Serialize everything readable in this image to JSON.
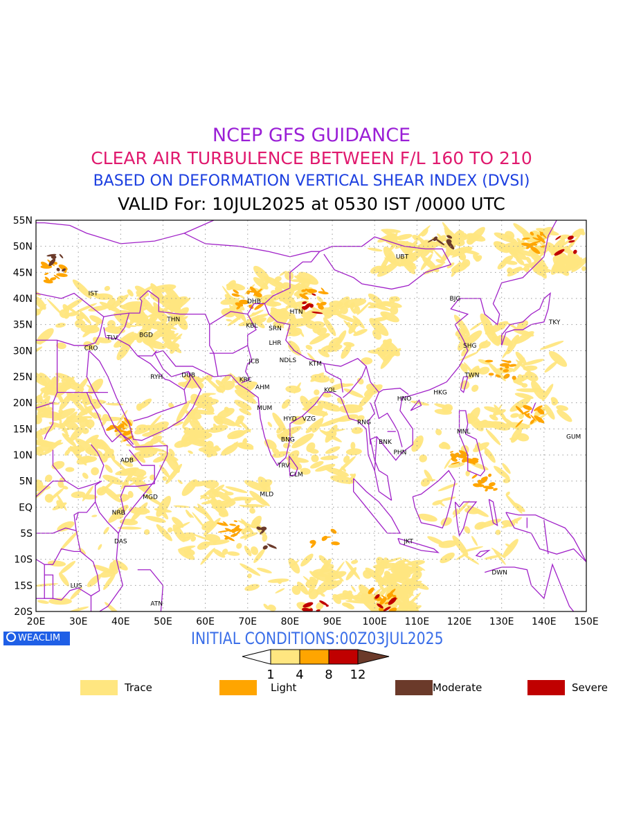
{
  "titles": {
    "line1": "NCEP GFS GUIDANCE",
    "line2": "CLEAR AIR TURBULENCE BETWEEN F/L 160 TO 210",
    "line3": "BASED ON DEFORMATION VERTICAL SHEAR INDEX (DVSI)",
    "line4": "VALID For: 10JUL2025 at 0530 IST /0000 UTC"
  },
  "axes": {
    "lat_labels": [
      "55N",
      "50N",
      "45N",
      "40N",
      "35N",
      "30N",
      "25N",
      "20N",
      "15N",
      "10N",
      "5N",
      "EQ",
      "5S",
      "10S",
      "15S",
      "20S"
    ],
    "lon_labels": [
      "20E",
      "30E",
      "40E",
      "50E",
      "60E",
      "70E",
      "80E",
      "90E",
      "100E",
      "110E",
      "120E",
      "130E",
      "140E",
      "150E"
    ],
    "lon_range": [
      20,
      150
    ],
    "lat_range": [
      -20,
      55
    ],
    "grid": true
  },
  "stations": [
    {
      "code": "IST",
      "lon": 33.5,
      "lat": 41.0
    },
    {
      "code": "TLV",
      "lon": 38.0,
      "lat": 32.5
    },
    {
      "code": "CRO",
      "lon": 33.0,
      "lat": 30.5
    },
    {
      "code": "THN",
      "lon": 52.5,
      "lat": 36.0
    },
    {
      "code": "BGD",
      "lon": 46.0,
      "lat": 33.0
    },
    {
      "code": "RYH",
      "lon": 48.5,
      "lat": 25.0
    },
    {
      "code": "DUB",
      "lon": 56.0,
      "lat": 25.3
    },
    {
      "code": "ADB",
      "lon": 41.5,
      "lat": 9.0
    },
    {
      "code": "MGD",
      "lon": 47.0,
      "lat": 2.0
    },
    {
      "code": "NRB",
      "lon": 39.5,
      "lat": -1.0
    },
    {
      "code": "DAS",
      "lon": 40.0,
      "lat": -6.5
    },
    {
      "code": "LUS",
      "lon": 29.5,
      "lat": -15.0
    },
    {
      "code": "ATN",
      "lon": 48.5,
      "lat": -18.5
    },
    {
      "code": "DHB",
      "lon": 71.5,
      "lat": 39.5
    },
    {
      "code": "KBL",
      "lon": 71.0,
      "lat": 34.8
    },
    {
      "code": "SRN",
      "lon": 76.5,
      "lat": 34.3
    },
    {
      "code": "HTN",
      "lon": 81.5,
      "lat": 37.5
    },
    {
      "code": "LHR",
      "lon": 76.5,
      "lat": 31.5
    },
    {
      "code": "JCB",
      "lon": 71.5,
      "lat": 28.0
    },
    {
      "code": "NDLS",
      "lon": 79.5,
      "lat": 28.2
    },
    {
      "code": "KRC",
      "lon": 69.5,
      "lat": 24.5
    },
    {
      "code": "AHM",
      "lon": 73.5,
      "lat": 23.0
    },
    {
      "code": "KTM",
      "lon": 86.0,
      "lat": 27.5
    },
    {
      "code": "KOL",
      "lon": 89.5,
      "lat": 22.5
    },
    {
      "code": "MUM",
      "lon": 74.0,
      "lat": 19.0
    },
    {
      "code": "HYD",
      "lon": 80.0,
      "lat": 17.0
    },
    {
      "code": "VZG",
      "lon": 84.5,
      "lat": 17.0
    },
    {
      "code": "BNG",
      "lon": 79.5,
      "lat": 13.0
    },
    {
      "code": "TRV",
      "lon": 78.5,
      "lat": 8.0
    },
    {
      "code": "CLM",
      "lon": 81.5,
      "lat": 6.3
    },
    {
      "code": "MLD",
      "lon": 74.5,
      "lat": 2.5
    },
    {
      "code": "RNG",
      "lon": 97.5,
      "lat": 16.3
    },
    {
      "code": "BNK",
      "lon": 102.5,
      "lat": 12.5
    },
    {
      "code": "PHN",
      "lon": 106.0,
      "lat": 10.5
    },
    {
      "code": "HNO",
      "lon": 107.0,
      "lat": 20.8
    },
    {
      "code": "HKG",
      "lon": 115.5,
      "lat": 22.0
    },
    {
      "code": "TWN",
      "lon": 123.0,
      "lat": 25.3
    },
    {
      "code": "SHG",
      "lon": 122.5,
      "lat": 31.0
    },
    {
      "code": "BJG",
      "lon": 119.0,
      "lat": 40.0
    },
    {
      "code": "UBT",
      "lon": 106.5,
      "lat": 48.0
    },
    {
      "code": "TKY",
      "lon": 142.5,
      "lat": 35.5
    },
    {
      "code": "MNL",
      "lon": 121.0,
      "lat": 14.5
    },
    {
      "code": "GUM",
      "lon": 147.0,
      "lat": 13.5
    },
    {
      "code": "JKT",
      "lon": 108.0,
      "lat": -6.5
    },
    {
      "code": "DWN",
      "lon": 129.5,
      "lat": -12.5
    }
  ],
  "initial_conditions": "INITIAL CONDITIONS:00Z03JUL2025",
  "colorbar": {
    "ticks": [
      "1",
      "4",
      "8",
      "12"
    ],
    "colors": [
      "#ffe680",
      "#ffa500",
      "#c00000",
      "#6b3a2a"
    ]
  },
  "legend": [
    {
      "label": "Trace",
      "color": "#ffe680"
    },
    {
      "label": "Light",
      "color": "#ffa500"
    },
    {
      "label": "Moderate",
      "color": "#6b3a2a"
    },
    {
      "label": "Severe",
      "color": "#c00000"
    }
  ],
  "logo": "WEACLIM",
  "colors": {
    "border": "#a020c8",
    "trace": "#ffe680",
    "light": "#ffa500",
    "severe": "#c00000",
    "moderate": "#6b3a2a"
  }
}
